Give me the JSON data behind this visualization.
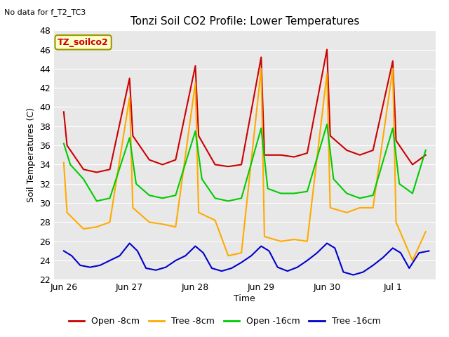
{
  "title": "Tonzi Soil CO2 Profile: Lower Temperatures",
  "subtitle": "No data for f_T2_TC3",
  "xlabel": "Time",
  "ylabel": "Soil Temperatures (C)",
  "ylim": [
    22,
    48
  ],
  "yticks": [
    22,
    24,
    26,
    28,
    30,
    32,
    34,
    36,
    38,
    40,
    42,
    44,
    46,
    48
  ],
  "legend_label_box": "TZ_soilco2",
  "bg_color": "#e8e8e8",
  "lines": {
    "open_8cm": {
      "label": "Open -8cm",
      "color": "#cc0000"
    },
    "tree_8cm": {
      "label": "Tree -8cm",
      "color": "#ffaa00"
    },
    "open_16cm": {
      "label": "Open -16cm",
      "color": "#00cc00"
    },
    "tree_16cm": {
      "label": "Tree -16cm",
      "color": "#0000cc"
    }
  },
  "open_8cm_x": [
    0.0,
    0.05,
    0.3,
    0.5,
    0.7,
    1.0,
    1.05,
    1.3,
    1.5,
    1.7,
    2.0,
    2.05,
    2.3,
    2.5,
    2.7,
    3.0,
    3.05,
    3.3,
    3.5,
    3.7,
    4.0,
    4.05,
    4.3,
    4.5,
    4.7,
    5.0,
    5.05,
    5.3,
    5.5
  ],
  "open_8cm_y": [
    39.5,
    36.0,
    33.5,
    33.2,
    33.5,
    43.0,
    37.0,
    34.5,
    34.0,
    34.5,
    44.3,
    37.0,
    34.0,
    33.8,
    34.0,
    45.2,
    35.0,
    35.0,
    34.8,
    35.2,
    46.0,
    37.0,
    35.5,
    35.0,
    35.5,
    44.8,
    36.5,
    34.0,
    35.0
  ],
  "tree_8cm_x": [
    0.0,
    0.05,
    0.3,
    0.5,
    0.7,
    1.0,
    1.05,
    1.3,
    1.5,
    1.7,
    2.0,
    2.05,
    2.3,
    2.5,
    2.7,
    3.0,
    3.05,
    3.3,
    3.5,
    3.7,
    4.0,
    4.05,
    4.3,
    4.5,
    4.7,
    5.0,
    5.05,
    5.3,
    5.5
  ],
  "tree_8cm_y": [
    34.2,
    29.0,
    27.3,
    27.5,
    28.0,
    41.0,
    29.5,
    28.0,
    27.8,
    27.5,
    42.5,
    29.0,
    28.2,
    24.5,
    24.8,
    44.0,
    26.5,
    26.0,
    26.2,
    26.0,
    43.5,
    29.5,
    29.0,
    29.5,
    29.5,
    44.0,
    28.0,
    24.0,
    27.0
  ],
  "open_16cm_x": [
    0.0,
    0.1,
    0.3,
    0.5,
    0.7,
    1.0,
    1.1,
    1.3,
    1.5,
    1.7,
    2.0,
    2.1,
    2.3,
    2.5,
    2.7,
    3.0,
    3.1,
    3.3,
    3.5,
    3.7,
    4.0,
    4.1,
    4.3,
    4.5,
    4.7,
    5.0,
    5.1,
    5.3,
    5.5
  ],
  "open_16cm_y": [
    36.2,
    34.0,
    32.5,
    30.2,
    30.5,
    36.8,
    32.0,
    30.8,
    30.5,
    30.8,
    37.5,
    32.5,
    30.5,
    30.2,
    30.5,
    37.8,
    31.5,
    31.0,
    31.0,
    31.2,
    38.2,
    32.5,
    31.0,
    30.5,
    30.8,
    37.8,
    32.0,
    31.0,
    35.5
  ],
  "tree_16cm_x": [
    0.0,
    0.12,
    0.25,
    0.4,
    0.55,
    0.7,
    0.85,
    1.0,
    1.12,
    1.25,
    1.4,
    1.55,
    1.7,
    1.85,
    2.0,
    2.12,
    2.25,
    2.4,
    2.55,
    2.7,
    2.85,
    3.0,
    3.12,
    3.25,
    3.4,
    3.55,
    3.7,
    3.85,
    4.0,
    4.12,
    4.25,
    4.4,
    4.55,
    4.7,
    4.85,
    5.0,
    5.12,
    5.25,
    5.4,
    5.55
  ],
  "tree_16cm_y": [
    25.0,
    24.5,
    23.5,
    23.3,
    23.5,
    24.0,
    24.5,
    25.8,
    25.0,
    23.2,
    23.0,
    23.3,
    24.0,
    24.5,
    25.5,
    24.8,
    23.2,
    22.9,
    23.2,
    23.8,
    24.5,
    25.5,
    25.0,
    23.3,
    22.9,
    23.3,
    24.0,
    24.8,
    25.8,
    25.3,
    22.8,
    22.5,
    22.8,
    23.5,
    24.3,
    25.3,
    24.8,
    23.2,
    24.8,
    25.0
  ],
  "xtick_positions": [
    0,
    1,
    2,
    3,
    4,
    5
  ],
  "xtick_labels": [
    "Jun 26",
    "Jun 27",
    "Jun 28",
    "Jun 29",
    "Jun 30",
    "Jul 1"
  ]
}
